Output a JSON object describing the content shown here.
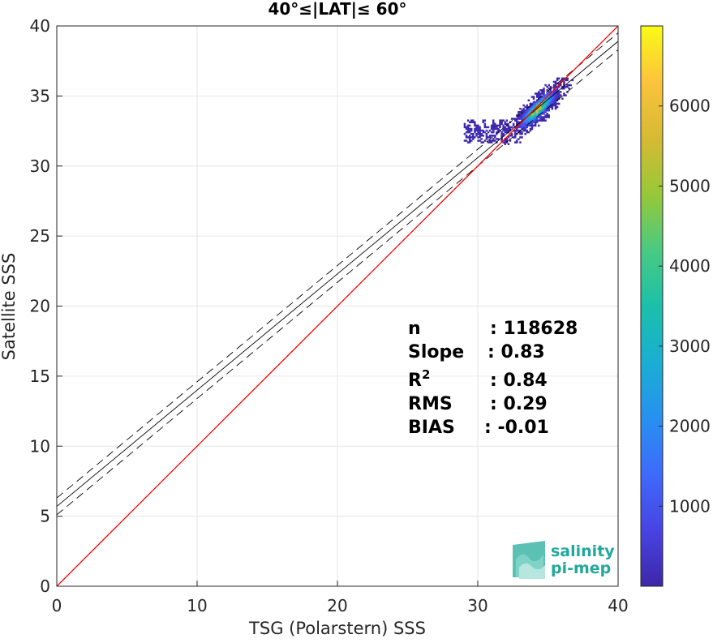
{
  "chart_data": {
    "type": "scatter",
    "title": "40°≤|LAT|≤ 60°",
    "xlabel": "TSG (Polarstern) SSS",
    "ylabel": "Satellite SSS",
    "xlim": [
      0,
      40
    ],
    "ylim": [
      0,
      40
    ],
    "xticks": [
      "0",
      "10",
      "20",
      "30",
      "40"
    ],
    "yticks": [
      "0",
      "5",
      "10",
      "15",
      "20",
      "25",
      "30",
      "35",
      "40"
    ],
    "grid": true,
    "lines": {
      "one_to_one": {
        "slope": 1,
        "intercept": 0,
        "color": "#ff0000"
      },
      "fit": {
        "slope": 0.83,
        "intercept": 5.7,
        "color": "#000000"
      },
      "fit_upper": {
        "slope": 0.83,
        "intercept": 6.3,
        "color": "#000000"
      },
      "fit_lower": {
        "slope": 0.83,
        "intercept": 5.1,
        "color": "#000000"
      }
    },
    "density": {
      "center": [
        34.2,
        34.0
      ],
      "x_range": [
        29.0,
        36.8
      ],
      "y_range": [
        30.8,
        36.3
      ],
      "peak_count": 7000
    },
    "colorbar": {
      "range": [
        0,
        7000
      ],
      "ticks": [
        "1000",
        "2000",
        "3000",
        "4000",
        "5000",
        "6000"
      ],
      "colormap": [
        "#3e26a8",
        "#4744e3",
        "#3e6afb",
        "#2791f0",
        "#1aaed3",
        "#1bc0a9",
        "#49ca81",
        "#98c838",
        "#d6ba33",
        "#fcc33c",
        "#f9fb15"
      ]
    },
    "stats": [
      {
        "label": "n",
        "value": ": 118628"
      },
      {
        "label": "Slope",
        "value": ": 0.83"
      },
      {
        "label": "R",
        "sup": "2",
        "value": ": 0.84"
      },
      {
        "label": "RMS",
        "value": ": 0.29"
      },
      {
        "label": "BIAS",
        "value": ": -0.01"
      }
    ]
  },
  "logo": {
    "line1": "salinity",
    "line2": "pi-mep"
  }
}
